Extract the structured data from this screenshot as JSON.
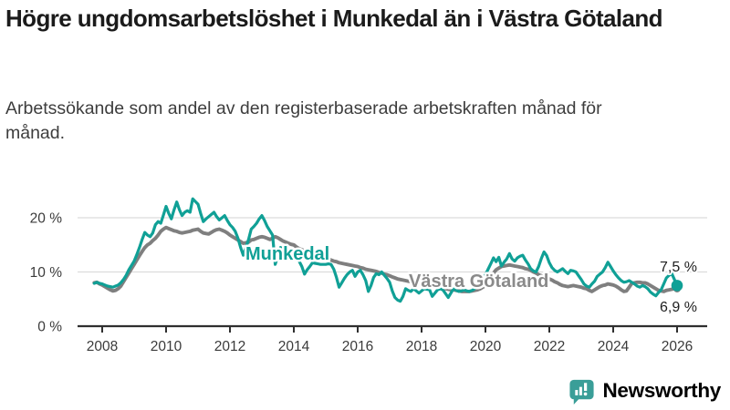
{
  "header": {
    "title": "Högre ungdomsarbetslöshet i Munkedal än i Västra Götaland",
    "subtitle": "Arbetssökande som andel av den registerbaserade arbetskraften månad för månad."
  },
  "footer": {
    "brand": "Newsworthy",
    "brand_icon": "chart-speech-bubble-icon"
  },
  "colors": {
    "munkedal": "#10a096",
    "vastra_gotaland": "#7f7f7f",
    "vastra_gotaland_label": "#8a8a8a",
    "grid": "#dcdcdc",
    "axis": "#2f2f2f",
    "tick_text": "#3b3b3b",
    "end_label_text": "#1e1e1e",
    "brand_teal": "#3a9e98",
    "title_text": "#1b1b1b",
    "subtitle_text": "#3d3d3d"
  },
  "chart_data": {
    "type": "line",
    "title": "Högre ungdomsarbetslöshet i Munkedal än i Västra Götaland",
    "subtitle": "Arbetssökande som andel av den registerbaserade arbetskraften månad för månad.",
    "xlabel": "",
    "ylabel": "",
    "grid": "horizontal-only",
    "legend": "inline-labels-on-lines",
    "ylim": [
      0,
      25
    ],
    "xlim": [
      2007.2,
      2026.9
    ],
    "yticks": [
      {
        "value": 0,
        "label": "0 %"
      },
      {
        "value": 10,
        "label": "10 %"
      },
      {
        "value": 20,
        "label": "20 %"
      }
    ],
    "xticks": [
      {
        "value": 2008,
        "label": "2008"
      },
      {
        "value": 2010,
        "label": "2010"
      },
      {
        "value": 2012,
        "label": "2012"
      },
      {
        "value": 2014,
        "label": "2014"
      },
      {
        "value": 2016,
        "label": "2016"
      },
      {
        "value": 2018,
        "label": "2018"
      },
      {
        "value": 2020,
        "label": "2020"
      },
      {
        "value": 2022,
        "label": "2022"
      },
      {
        "value": 2024,
        "label": "2024"
      },
      {
        "value": 2026,
        "label": "2026"
      }
    ],
    "x_start": 2007.75,
    "x_step": 0.08333,
    "x_unit": "year (monthly points)",
    "series": [
      {
        "name": "Munkedal",
        "color": "#10a096",
        "end_value": 7.5,
        "end_label": "7,5 %",
        "values": [
          7.9,
          8.1,
          7.9,
          7.8,
          7.6,
          7.4,
          7.3,
          7.2,
          7.4,
          7.6,
          8.0,
          8.6,
          9.4,
          10.4,
          11.2,
          12.0,
          13.2,
          14.5,
          16.0,
          17.3,
          16.8,
          16.5,
          17.2,
          18.7,
          19.3,
          19.0,
          20.5,
          22.1,
          20.8,
          19.8,
          21.5,
          22.9,
          21.5,
          20.4,
          21.0,
          21.3,
          21.0,
          23.5,
          23.0,
          22.5,
          20.8,
          19.3,
          19.8,
          20.2,
          20.6,
          21.0,
          20.2,
          19.6,
          20.0,
          20.4,
          19.5,
          18.7,
          18.2,
          17.5,
          16.2,
          14.5,
          13.1,
          14.5,
          16.0,
          17.9,
          18.4,
          19.0,
          19.8,
          20.4,
          19.5,
          18.4,
          17.6,
          16.8,
          11.4,
          13.0,
          14.5,
          14.3,
          14.0,
          13.8,
          13.5,
          13.2,
          12.8,
          12.0,
          11.0,
          9.6,
          10.4,
          11.0,
          11.7,
          11.6,
          11.5,
          11.4,
          11.4,
          11.4,
          11.5,
          11.4,
          10.5,
          9.0,
          7.2,
          8.0,
          8.8,
          9.5,
          10.0,
          10.3,
          9.2,
          10.0,
          10.3,
          9.5,
          8.4,
          6.4,
          7.5,
          9.0,
          9.7,
          9.5,
          10.0,
          9.4,
          8.8,
          8.1,
          6.5,
          5.3,
          4.8,
          4.6,
          5.5,
          6.9,
          6.6,
          6.4,
          6.9,
          6.5,
          6.1,
          6.5,
          6.9,
          6.8,
          6.7,
          5.5,
          6.1,
          6.7,
          6.9,
          6.7,
          6.0,
          5.3,
          6.1,
          6.9,
          6.6,
          6.4,
          6.5,
          6.7,
          6.5,
          6.4,
          6.6,
          6.9,
          7.5,
          8.4,
          9.0,
          9.5,
          10.5,
          11.5,
          12.6,
          11.9,
          12.7,
          11.1,
          11.8,
          12.4,
          13.4,
          12.4,
          12.0,
          12.6,
          12.9,
          13.1,
          12.2,
          11.5,
          10.6,
          10.2,
          10.0,
          11.0,
          12.5,
          13.7,
          13.0,
          11.7,
          10.8,
          10.3,
          10.0,
          10.3,
          10.6,
          10.1,
          9.7,
          10.3,
          10.2,
          10.0,
          9.3,
          8.6,
          7.8,
          7.4,
          7.2,
          7.8,
          8.3,
          9.2,
          9.6,
          10.0,
          10.8,
          11.8,
          11.0,
          10.2,
          9.5,
          8.9,
          8.4,
          8.1,
          8.2,
          8.4,
          8.1,
          7.8,
          7.4,
          7.2,
          7.5,
          7.3,
          6.9,
          6.3,
          5.9,
          5.6,
          6.2,
          6.7,
          7.8,
          8.9,
          9.4,
          9.7,
          8.6,
          7.5
        ]
      },
      {
        "name": "Västra Götaland",
        "color": "#7f7f7f",
        "end_value": 6.9,
        "end_label": "6,9 %",
        "values": [
          8.0,
          8.1,
          7.8,
          7.6,
          7.3,
          7.0,
          6.7,
          6.5,
          6.6,
          6.9,
          7.4,
          8.2,
          9.0,
          9.8,
          10.6,
          11.4,
          12.2,
          13.0,
          13.8,
          14.5,
          15.0,
          15.3,
          15.8,
          16.2,
          16.8,
          17.5,
          17.9,
          18.2,
          18.0,
          17.8,
          17.6,
          17.5,
          17.3,
          17.2,
          17.3,
          17.4,
          17.5,
          17.7,
          17.8,
          17.9,
          17.5,
          17.2,
          17.1,
          17.0,
          17.3,
          17.6,
          17.8,
          17.9,
          17.7,
          17.5,
          17.2,
          16.8,
          16.5,
          16.2,
          15.9,
          15.6,
          15.3,
          15.4,
          15.5,
          15.9,
          16.0,
          16.2,
          16.4,
          16.5,
          16.4,
          16.2,
          16.0,
          16.2,
          16.5,
          16.3,
          16.0,
          15.7,
          15.5,
          15.3,
          15.1,
          15.0,
          14.6,
          14.3,
          14.1,
          13.9,
          13.7,
          13.5,
          13.4,
          13.2,
          13.0,
          12.9,
          12.8,
          12.6,
          12.4,
          12.2,
          12.0,
          11.9,
          11.7,
          11.6,
          11.5,
          11.4,
          11.3,
          11.2,
          11.1,
          11.0,
          10.8,
          10.7,
          10.5,
          10.4,
          10.3,
          10.2,
          10.1,
          9.9,
          9.8,
          9.6,
          9.5,
          9.3,
          9.1,
          8.9,
          8.7,
          8.6,
          8.5,
          8.4,
          8.3,
          8.2,
          8.1,
          8.0,
          7.9,
          7.8,
          7.7,
          7.6,
          7.5,
          7.4,
          7.3,
          7.2,
          7.1,
          7.0,
          6.9,
          6.8,
          6.7,
          6.7,
          6.6,
          6.5,
          6.4,
          6.4,
          6.4,
          6.4,
          6.5,
          6.6,
          6.7,
          6.9,
          7.2,
          7.5,
          8.2,
          9.0,
          9.8,
          10.4,
          10.7,
          11.0,
          11.1,
          11.2,
          11.3,
          11.2,
          11.1,
          11.0,
          10.9,
          10.8,
          10.6,
          10.5,
          10.3,
          10.0,
          9.8,
          9.5,
          9.3,
          9.1,
          9.0,
          8.7,
          8.5,
          8.2,
          8.0,
          7.7,
          7.5,
          7.4,
          7.3,
          7.4,
          7.5,
          7.4,
          7.3,
          7.2,
          7.0,
          6.9,
          6.6,
          6.4,
          6.7,
          7.0,
          7.3,
          7.5,
          7.6,
          7.8,
          7.7,
          7.6,
          7.4,
          7.1,
          6.7,
          6.4,
          6.5,
          7.2,
          7.9,
          8.0,
          8.1,
          8.1,
          8.0,
          8.0,
          7.8,
          7.5,
          7.2,
          6.9,
          6.6,
          6.5,
          6.4,
          6.6,
          6.7,
          6.8,
          6.9,
          6.9
        ]
      }
    ]
  }
}
